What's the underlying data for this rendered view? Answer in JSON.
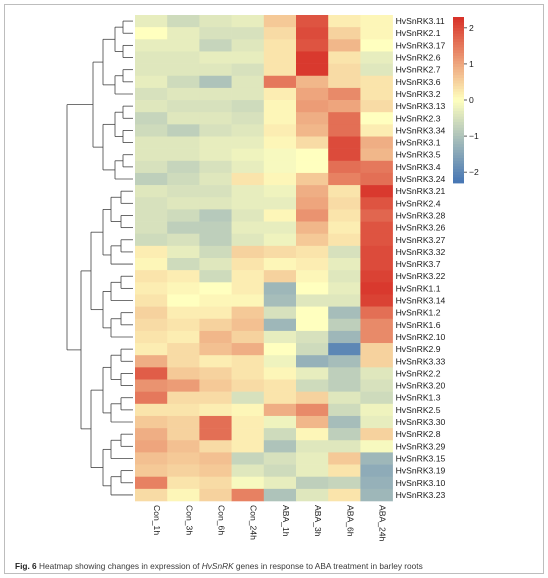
{
  "caption": {
    "label": "Fig. 6",
    "before": " Heatmap showing changes in expression of ",
    "gene": "HvSnRK",
    "after": " genes in response to ABA treatment in barley roots"
  },
  "chart_data": {
    "type": "heatmap",
    "columns": [
      "Con_1h",
      "Con_3h",
      "Con_6h",
      "Con_24h",
      "ABA_1h",
      "ABA_3h",
      "ABA_6h",
      "ABA_24h"
    ],
    "rows": [
      "HvSnRK3.11",
      "HvSnRK2.1",
      "HvSnRK3.17",
      "HvSnRK2.6",
      "HvSnRK2.7",
      "HvSnRK3.6",
      "HvSnRK3.2",
      "HvSnRK3.13",
      "HvSnRK2.3",
      "HvSnRK3.34",
      "HvSnRK3.1",
      "HvSnRK3.5",
      "HvSnRK3.4",
      "HvSnRK3.24",
      "HvSnRK3.21",
      "HvSnRK2.4",
      "HvSnRK3.28",
      "HvSnRK3.26",
      "HvSnRK3.27",
      "HvSnRK3.32",
      "HvSnRK3.7",
      "HvSnRK3.22",
      "HvSnRK1.1",
      "HvSnRK3.14",
      "HvSnRK1.2",
      "HvSnRK1.6",
      "HvSnRK2.10",
      "HvSnRK2.9",
      "HvSnRK3.33",
      "HvSnRK2.2",
      "HvSnRK3.20",
      "HvSnRK1.3",
      "HvSnRK2.5",
      "HvSnRK3.30",
      "HvSnRK2.8",
      "HvSnRK3.29",
      "HvSnRK3.15",
      "HvSnRK3.19",
      "HvSnRK3.10",
      "HvSnRK3.23"
    ],
    "values": [
      [
        -0.3,
        -0.6,
        -0.4,
        -0.3,
        0.6,
        1.9,
        0.2,
        0.1
      ],
      [
        0.0,
        -0.3,
        -0.5,
        -0.5,
        0.4,
        2.0,
        0.5,
        0.1
      ],
      [
        -0.3,
        -0.3,
        -0.7,
        -0.4,
        0.3,
        1.9,
        0.8,
        0.0
      ],
      [
        -0.4,
        -0.4,
        -0.3,
        -0.3,
        0.3,
        2.2,
        0.3,
        -0.3
      ],
      [
        -0.4,
        -0.4,
        -0.4,
        -0.5,
        0.3,
        2.2,
        0.4,
        -0.4
      ],
      [
        -0.3,
        -0.6,
        -1.0,
        -0.4,
        1.5,
        0.8,
        0.4,
        0.3
      ],
      [
        -0.5,
        -0.4,
        -0.4,
        -0.4,
        0.2,
        1.0,
        1.3,
        0.3
      ],
      [
        -0.4,
        -0.5,
        -0.5,
        -0.6,
        0.1,
        1.1,
        1.0,
        0.4
      ],
      [
        -0.7,
        -0.4,
        -0.4,
        -0.5,
        0.1,
        0.9,
        1.6,
        0.0
      ],
      [
        -0.6,
        -0.8,
        -0.5,
        -0.4,
        0.2,
        0.8,
        1.6,
        0.2
      ],
      [
        -0.4,
        -0.4,
        -0.3,
        -0.3,
        0.1,
        0.4,
        2.0,
        0.9
      ],
      [
        -0.4,
        -0.4,
        -0.3,
        -0.2,
        -0.1,
        0.0,
        2.0,
        0.8
      ],
      [
        -0.5,
        -0.7,
        -0.5,
        -0.3,
        -0.1,
        0.0,
        1.6,
        1.5
      ],
      [
        -0.8,
        -0.6,
        -0.4,
        0.3,
        0.1,
        0.6,
        1.4,
        1.6
      ],
      [
        -0.4,
        -0.5,
        -0.5,
        -0.3,
        -0.2,
        0.9,
        0.3,
        2.2
      ],
      [
        -0.5,
        -0.4,
        -0.4,
        -0.3,
        -0.3,
        1.0,
        0.4,
        1.9
      ],
      [
        -0.5,
        -0.6,
        -0.9,
        -0.4,
        0.1,
        1.2,
        0.3,
        1.7
      ],
      [
        -0.5,
        -0.8,
        -0.8,
        -0.3,
        -0.3,
        0.8,
        0.2,
        1.9
      ],
      [
        -0.6,
        -0.5,
        -0.8,
        -0.4,
        -0.2,
        0.6,
        0.3,
        1.9
      ],
      [
        0.2,
        -0.3,
        -0.6,
        0.5,
        0.4,
        0.3,
        -0.5,
        2.0
      ],
      [
        0.1,
        -0.6,
        -0.4,
        0.3,
        0.1,
        0.2,
        -0.3,
        2.0
      ],
      [
        0.3,
        0.2,
        -0.6,
        0.2,
        0.5,
        0.1,
        -0.4,
        2.1
      ],
      [
        0.2,
        0.1,
        0.0,
        0.2,
        -1.2,
        0.0,
        -0.3,
        2.2
      ],
      [
        0.3,
        0.0,
        0.1,
        0.1,
        -1.1,
        -0.4,
        -0.4,
        2.1
      ],
      [
        0.5,
        0.2,
        0.2,
        0.6,
        -0.5,
        0.0,
        -1.1,
        1.6
      ],
      [
        0.4,
        0.3,
        0.5,
        0.7,
        -1.2,
        0.0,
        -0.8,
        1.3
      ],
      [
        0.3,
        0.2,
        0.8,
        0.5,
        -0.3,
        -0.5,
        -1.2,
        1.3
      ],
      [
        0.2,
        0.4,
        0.7,
        0.9,
        0.0,
        -0.6,
        -2.0,
        0.5
      ],
      [
        0.9,
        0.4,
        0.2,
        0.3,
        -0.2,
        -1.3,
        -1.1,
        0.5
      ],
      [
        1.8,
        0.6,
        0.5,
        0.3,
        0.1,
        -0.3,
        -0.8,
        -0.4
      ],
      [
        1.2,
        1.1,
        0.6,
        0.4,
        0.3,
        -0.6,
        -0.8,
        -0.5
      ],
      [
        1.5,
        0.4,
        0.4,
        -0.5,
        0.3,
        0.5,
        -0.4,
        -0.6
      ],
      [
        0.3,
        0.3,
        0.2,
        0.1,
        0.9,
        1.3,
        -0.6,
        -0.2
      ],
      [
        0.6,
        0.5,
        1.6,
        0.2,
        -0.2,
        0.8,
        -1.1,
        -0.3
      ],
      [
        0.9,
        0.5,
        1.6,
        0.2,
        -0.6,
        0.1,
        -0.8,
        0.5
      ],
      [
        1.0,
        0.7,
        0.4,
        0.2,
        -1.0,
        -0.4,
        -0.4,
        -0.1
      ],
      [
        0.7,
        0.6,
        0.7,
        -0.7,
        -0.5,
        -0.3,
        0.6,
        -1.2
      ],
      [
        0.6,
        0.5,
        0.6,
        -0.4,
        -0.6,
        -0.3,
        0.3,
        -1.4
      ],
      [
        1.4,
        0.3,
        0.4,
        -0.1,
        -0.3,
        -0.8,
        -0.7,
        -1.3
      ],
      [
        0.4,
        0.1,
        0.5,
        1.4,
        -1.0,
        -0.4,
        0.3,
        -1.2
      ]
    ],
    "colorscale": {
      "low": "#4575b4",
      "mid": "#ffffbf",
      "high": "#d73027",
      "min": -2.3,
      "max": 2.3
    },
    "colorbar_ticks": [
      2,
      1,
      0,
      -1,
      -2
    ]
  }
}
